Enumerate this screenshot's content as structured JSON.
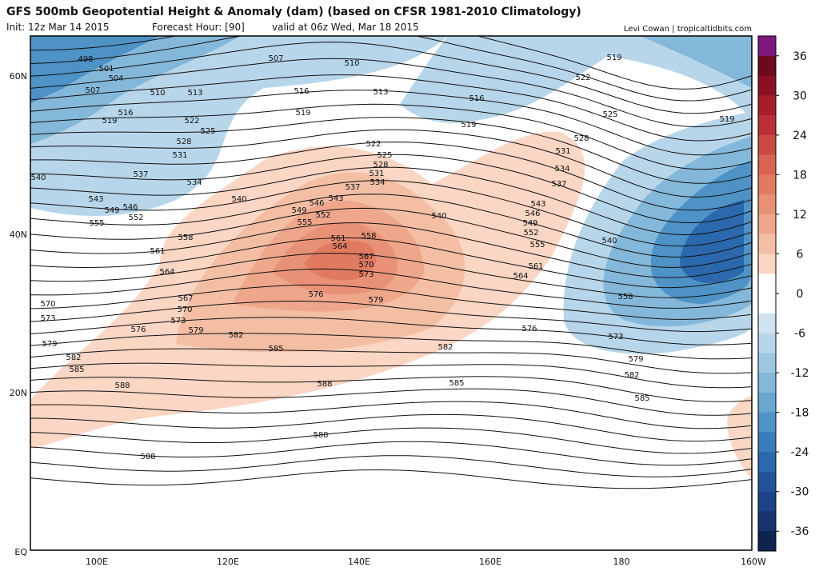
{
  "header": {
    "title": "GFS 500mb Geopotential Height & Anomaly (dam) (based on CFSR 1981-2010 Climatology)",
    "init": "Init: 12z Mar 14 2015",
    "forecast_hour": "Forecast Hour: [90]",
    "valid": "valid at 06z Wed, Mar 18 2015",
    "credit": "Levi Cowan | tropicaltidbits.com"
  },
  "map": {
    "lat_labels": [
      "60N",
      "40N",
      "20N",
      "EQ"
    ],
    "lon_labels": [
      "100E",
      "120E",
      "140E",
      "160E",
      "180",
      "160W"
    ],
    "contour_labels": [
      498,
      501,
      504,
      507,
      510,
      513,
      516,
      519,
      522,
      525,
      528,
      531,
      534,
      537,
      540,
      543,
      546,
      549,
      552,
      555,
      558,
      561,
      564,
      567,
      570,
      573,
      576,
      579,
      582,
      585,
      588,
      588,
      588,
      585,
      585,
      582,
      579,
      576,
      573,
      582,
      558,
      561,
      564,
      540,
      540,
      507,
      510,
      513,
      516,
      519,
      516,
      519,
      519,
      522,
      525,
      528,
      531,
      534,
      537,
      543,
      546,
      549,
      552,
      555,
      519,
      570,
      573,
      579,
      582,
      585,
      588,
      522,
      525,
      528,
      531,
      534,
      537,
      540,
      543,
      546,
      549,
      552,
      555,
      558,
      561,
      564,
      567,
      570,
      573,
      576,
      579
    ]
  },
  "colorbar": {
    "lim": [
      -39,
      39
    ],
    "ticks": [
      36,
      30,
      24,
      18,
      12,
      6,
      0,
      -6,
      -12,
      -18,
      -24,
      -30,
      -36
    ],
    "colors": [
      "#80177f",
      "#6b0a1d",
      "#8a1024",
      "#a71d2b",
      "#bd2f36",
      "#cc4a45",
      "#d86552",
      "#e07b62",
      "#e89176",
      "#efa78c",
      "#f4bea5",
      "#fad6c4",
      "#ffffff",
      "#ffffff",
      "#cfe4f0",
      "#b7d6ea",
      "#9ec8e2",
      "#84b8da",
      "#69a6d0",
      "#4e92c6",
      "#3a7dbb",
      "#2b68ad",
      "#23549b",
      "#1d4386",
      "#17336e",
      "#0f2350"
    ]
  }
}
